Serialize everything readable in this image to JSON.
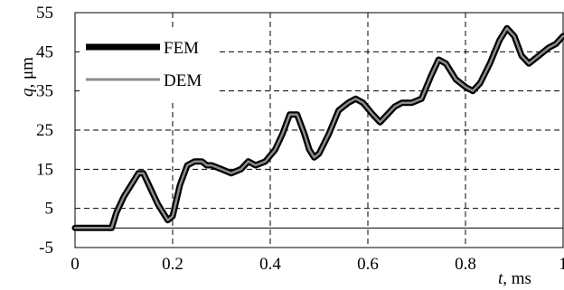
{
  "chart_data": {
    "type": "line",
    "xlabel": {
      "symbol": "t",
      "unit": ", ms"
    },
    "ylabel": {
      "symbol": "q",
      "unit": ", μm"
    },
    "xlim": [
      0,
      1
    ],
    "ylim": [
      -5,
      55
    ],
    "x_ticks": [
      "0",
      "0.2",
      "0.4",
      "0.6",
      "0.8",
      "1"
    ],
    "y_ticks": [
      "-5",
      "5",
      "15",
      "25",
      "35",
      "45",
      "55"
    ],
    "grid": "dashed",
    "legend_position": "top-left",
    "series": [
      {
        "name": "FEM",
        "color": "#000000",
        "x": [
          0,
          0.075,
          0.085,
          0.1,
          0.115,
          0.13,
          0.14,
          0.155,
          0.17,
          0.19,
          0.2,
          0.215,
          0.23,
          0.245,
          0.26,
          0.27,
          0.28,
          0.3,
          0.32,
          0.34,
          0.355,
          0.37,
          0.39,
          0.41,
          0.425,
          0.44,
          0.455,
          0.47,
          0.48,
          0.49,
          0.5,
          0.52,
          0.54,
          0.56,
          0.575,
          0.59,
          0.61,
          0.625,
          0.64,
          0.655,
          0.67,
          0.69,
          0.71,
          0.73,
          0.745,
          0.76,
          0.78,
          0.8,
          0.815,
          0.83,
          0.85,
          0.87,
          0.885,
          0.9,
          0.915,
          0.93,
          0.95,
          0.97,
          0.985,
          1.0
        ],
        "values": [
          0,
          0,
          4,
          8,
          11,
          14,
          14,
          10,
          6,
          2,
          3,
          11,
          16,
          17,
          17,
          16,
          16,
          15,
          14,
          15,
          17,
          16,
          17,
          20,
          24,
          29,
          29,
          24,
          20,
          18,
          19,
          24,
          30,
          32,
          33,
          32,
          29,
          27,
          29,
          31,
          32,
          32,
          33,
          39,
          43,
          42,
          38,
          36,
          35,
          37,
          42,
          48,
          51,
          49,
          44,
          42,
          44,
          46,
          47,
          49
        ]
      },
      {
        "name": "DEM",
        "color": "#8c8c8c",
        "x": [
          0,
          0.075,
          0.085,
          0.1,
          0.115,
          0.13,
          0.14,
          0.155,
          0.17,
          0.19,
          0.2,
          0.215,
          0.23,
          0.245,
          0.26,
          0.27,
          0.28,
          0.3,
          0.32,
          0.34,
          0.355,
          0.37,
          0.39,
          0.41,
          0.425,
          0.44,
          0.455,
          0.47,
          0.48,
          0.49,
          0.5,
          0.52,
          0.54,
          0.56,
          0.575,
          0.59,
          0.61,
          0.625,
          0.64,
          0.655,
          0.67,
          0.69,
          0.71,
          0.73,
          0.745,
          0.76,
          0.78,
          0.8,
          0.815,
          0.83,
          0.85,
          0.87,
          0.885,
          0.9,
          0.915,
          0.93,
          0.95,
          0.97,
          0.985,
          1.0
        ],
        "values": [
          0,
          0,
          4,
          8,
          11,
          14,
          14,
          10,
          6,
          2,
          3,
          11,
          16,
          17,
          17,
          16,
          16,
          15,
          14,
          15,
          17,
          16,
          17,
          20,
          24,
          29,
          29,
          24,
          20,
          18,
          19,
          24,
          30,
          32,
          33,
          32,
          29,
          27,
          29,
          31,
          32,
          32,
          33,
          39,
          43,
          42,
          38,
          36,
          35,
          37,
          42,
          48,
          51,
          49,
          44,
          42,
          44,
          46,
          47,
          49
        ]
      }
    ]
  }
}
